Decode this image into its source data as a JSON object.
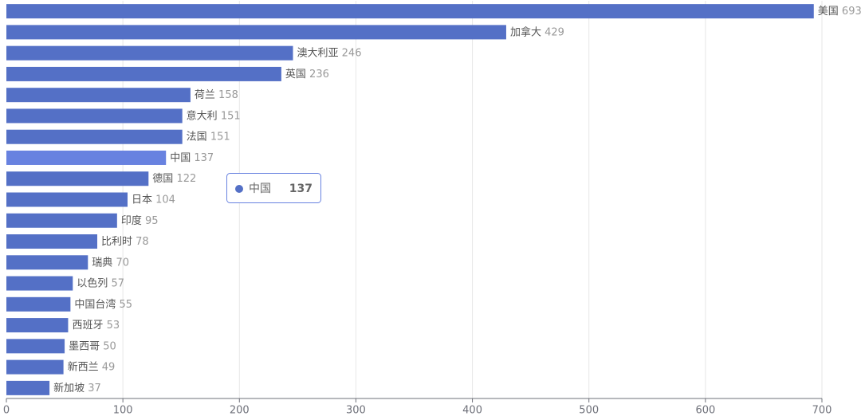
{
  "chart_data": {
    "type": "hbar",
    "categories": [
      "美国",
      "加拿大",
      "澳大利亚",
      "英国",
      "荷兰",
      "意大利",
      "法国",
      "中国",
      "德国",
      "日本",
      "印度",
      "比利时",
      "瑞典",
      "以色列",
      "中国台湾",
      "西班牙",
      "墨西哥",
      "新西兰",
      "新加坡"
    ],
    "values": [
      693,
      429,
      246,
      236,
      158,
      151,
      151,
      137,
      122,
      104,
      95,
      78,
      70,
      57,
      55,
      53,
      50,
      49,
      37
    ],
    "color": "#5470c6",
    "emphasis_color": "#6882e0",
    "xlim": [
      0,
      700
    ],
    "xticks": [
      0,
      100,
      200,
      300,
      400,
      500,
      600,
      700
    ],
    "grid": true,
    "tooltip": {
      "name": "中国",
      "value": 137
    }
  }
}
